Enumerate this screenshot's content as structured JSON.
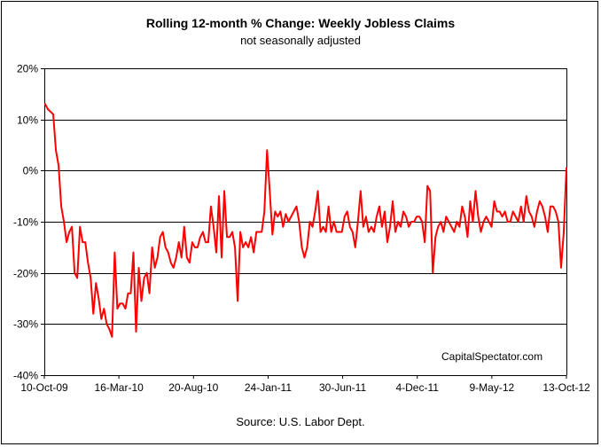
{
  "chart_data": {
    "type": "line",
    "title": "Rolling 12-month %  Change: Weekly Jobless Claims",
    "subtitle": "not seasonally adjusted",
    "source": "Source: U.S. Labor Dept.",
    "watermark": "CapitalSpectator.com",
    "xlabel": "",
    "ylabel": "",
    "ylim": [
      -40,
      20
    ],
    "y_ticks": [
      20,
      10,
      0,
      -10,
      -20,
      -30,
      -40
    ],
    "y_tick_labels": [
      "20%",
      "10%",
      "0%",
      "-10%",
      "-20%",
      "-30%",
      "-40%"
    ],
    "x_tick_labels": [
      "10-Oct-09",
      "16-Mar-10",
      "20-Aug-10",
      "24-Jan-11",
      "30-Jun-11",
      "4-Dec-11",
      "9-May-12",
      "13-Oct-12"
    ],
    "grid": "horizontal",
    "legend": "none",
    "line_color": "#ff0000",
    "series": [
      {
        "values": [
          13,
          12,
          11.5,
          11,
          4,
          1,
          -7,
          -10,
          -14,
          -12,
          -11,
          -20,
          -21,
          -11,
          -14,
          -14,
          -18,
          -21,
          -28,
          -22,
          -25,
          -29,
          -27,
          -30,
          -31,
          -32.5,
          -16,
          -27,
          -26,
          -26,
          -27,
          -24,
          -24,
          -16,
          -31.5,
          -19,
          -25.5,
          -21,
          -20,
          -24,
          -15,
          -19,
          -17,
          -13,
          -12,
          -15,
          -16,
          -18,
          -19,
          -17,
          -14,
          -17,
          -11,
          -17,
          -18,
          -14,
          -15,
          -15,
          -13,
          -12,
          -14,
          -14,
          -7,
          -11,
          -16,
          -5,
          -17,
          -4,
          -13,
          -13,
          -12,
          -15,
          -25.5,
          -12,
          -15,
          -14,
          -15,
          -13,
          -16,
          -12,
          -12,
          -12,
          -8,
          4,
          -4,
          -12.5,
          -8,
          -9,
          -8,
          -11,
          -8.5,
          -10,
          -9,
          -8,
          -7,
          -10,
          -15,
          -17,
          -15,
          -10,
          -11,
          -8,
          -4,
          -12,
          -11,
          -12,
          -7,
          -12,
          -10,
          -12,
          -12,
          -12,
          -9,
          -8,
          -11,
          -12,
          -15,
          -10,
          -4,
          -11,
          -9,
          -12,
          -11,
          -12,
          -9,
          -7,
          -11,
          -8,
          -14,
          -11,
          -6,
          -12,
          -10,
          -11,
          -8,
          -9,
          -11,
          -10,
          -10,
          -9,
          -9,
          -10,
          -14,
          -3,
          -4,
          -20,
          -13,
          -11,
          -10,
          -12,
          -9,
          -10,
          -11,
          -12,
          -10,
          -11,
          -7,
          -9,
          -13,
          -6,
          -10,
          -4,
          -9,
          -12,
          -10,
          -9,
          -10,
          -11,
          -6,
          -8,
          -8,
          -9,
          -8,
          -10,
          -10,
          -8,
          -9,
          -10,
          -7,
          -10,
          -5,
          -8,
          -9,
          -11,
          -8,
          -6,
          -7,
          -9,
          -12,
          -7,
          -7,
          -8,
          -10,
          -19,
          -12,
          0.5
        ]
      }
    ]
  }
}
